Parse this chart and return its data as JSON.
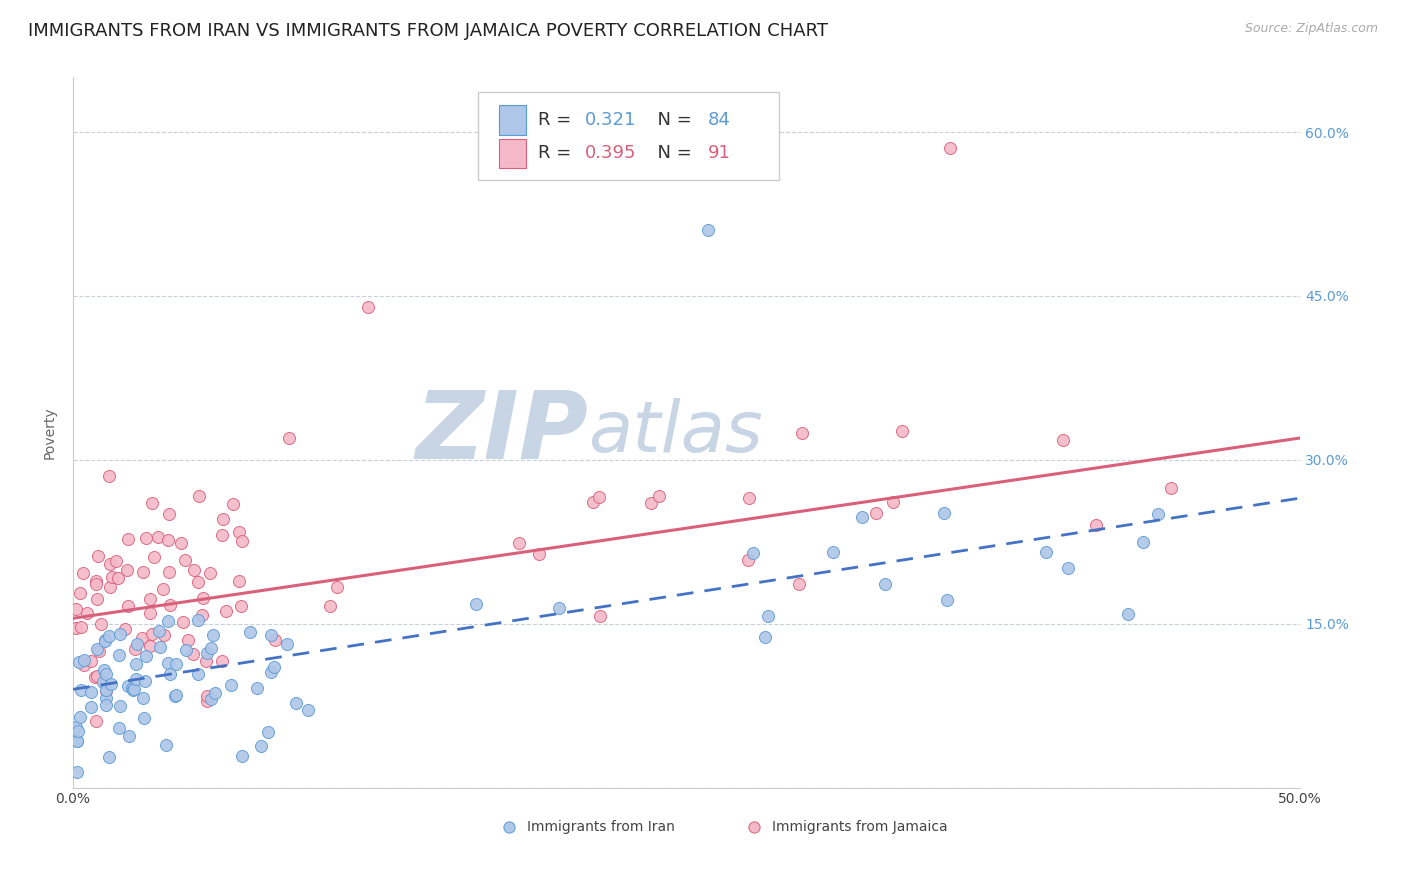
{
  "title": "IMMIGRANTS FROM IRAN VS IMMIGRANTS FROM JAMAICA POVERTY CORRELATION CHART",
  "source": "Source: ZipAtlas.com",
  "ylabel": "Poverty",
  "yticks": [
    0.0,
    0.15,
    0.3,
    0.45,
    0.6
  ],
  "ytick_labels": [
    "",
    "15.0%",
    "30.0%",
    "45.0%",
    "60.0%"
  ],
  "xlim": [
    0.0,
    0.5
  ],
  "ylim": [
    0.0,
    0.65
  ],
  "iran_R": 0.321,
  "iran_N": 84,
  "jamaica_R": 0.395,
  "jamaica_N": 91,
  "iran_color": "#aec6e8",
  "iran_edge_color": "#5b9bd5",
  "jamaica_color": "#f4b8c8",
  "jamaica_edge_color": "#d9607a",
  "iran_line_color": "#4472c4",
  "jamaica_line_color": "#d9607a",
  "watermark_zip_color": "#c8d5e5",
  "watermark_atlas_color": "#c8d5e5",
  "background_color": "#ffffff",
  "grid_color": "#c8d0dc",
  "right_axis_color": "#5b9bd5",
  "title_fontsize": 13,
  "axis_label_fontsize": 10,
  "tick_fontsize": 10,
  "source_fontsize": 9
}
